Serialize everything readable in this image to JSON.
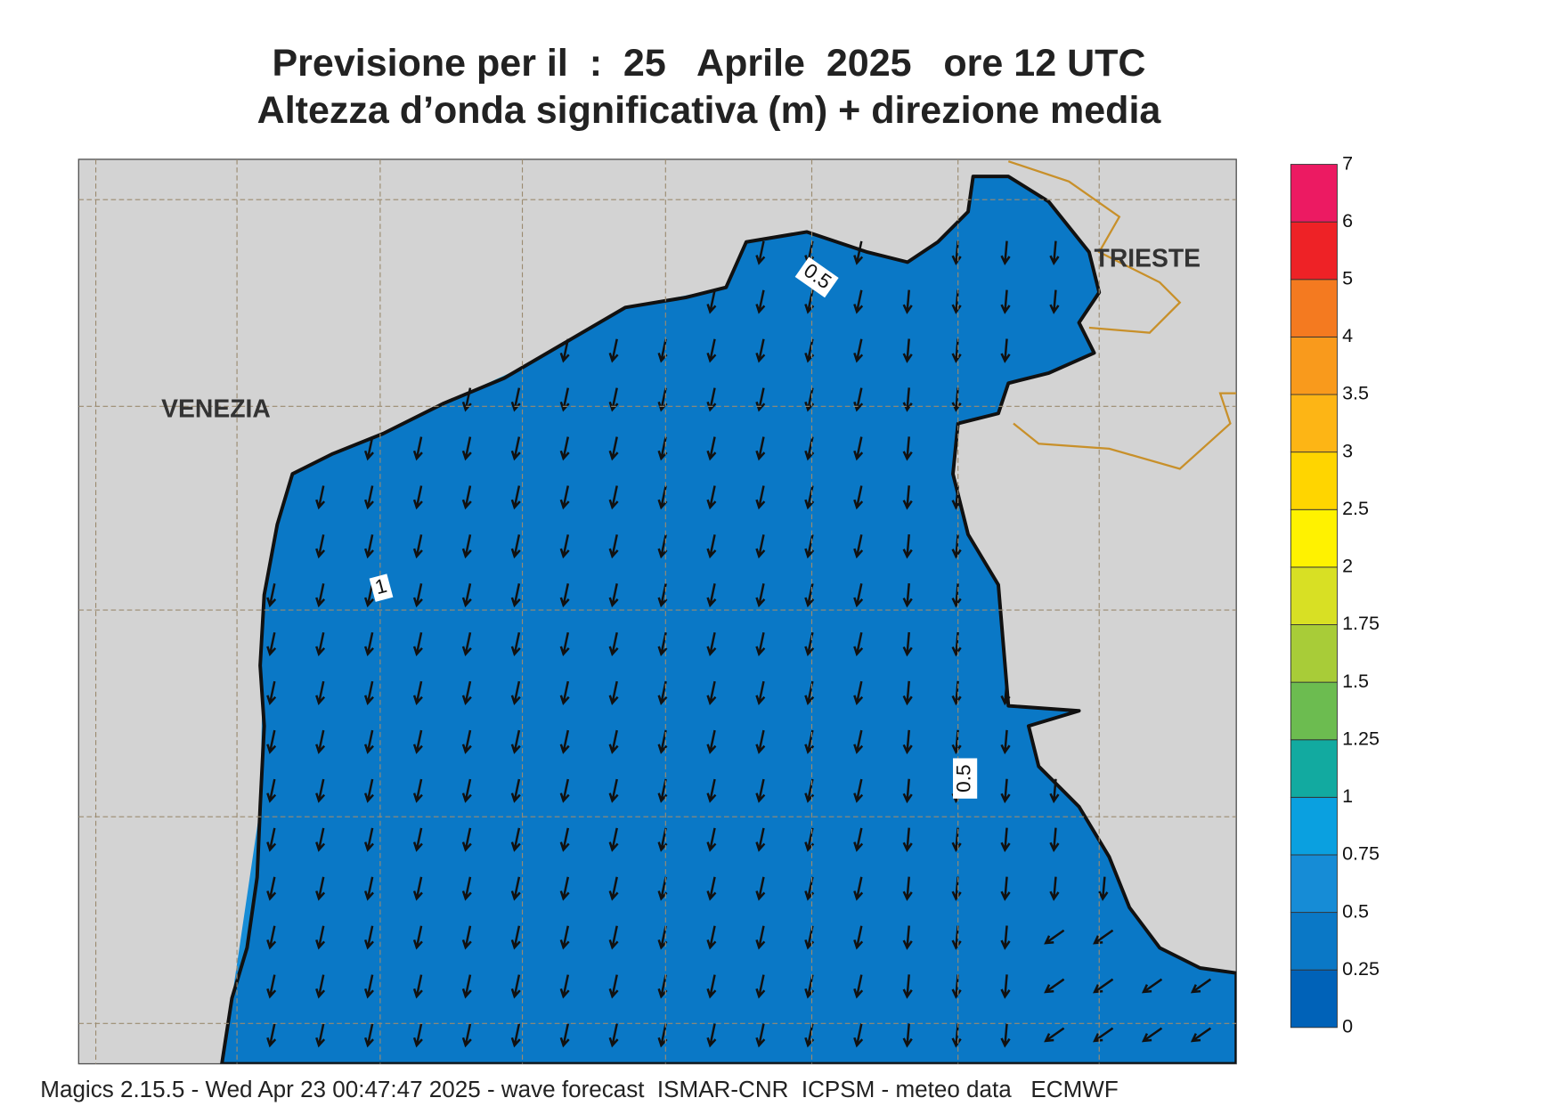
{
  "header": {
    "title": "Previsione per il  :  25   Aprile  2025   ore 12 UTC",
    "subtitle": "Altezza d’onda significativa (m) + direzione media"
  },
  "map": {
    "cities": [
      "VENEZIA",
      "TRIESTE"
    ],
    "contour_labels": [
      "0.5",
      "1",
      "0.5"
    ]
  },
  "legend": {
    "levels": [
      0,
      0.25,
      0.5,
      0.75,
      1,
      1.25,
      1.5,
      1.75,
      2,
      2.5,
      3,
      3.5,
      4,
      5,
      6,
      7
    ],
    "colors": [
      "#0062b8",
      "#0a78c6",
      "#168cd6",
      "#0aa0e0",
      "#12aaa0",
      "#6cbc50",
      "#a8cc38",
      "#d8e024",
      "#fff200",
      "#ffd500",
      "#fdb515",
      "#f99a1c",
      "#f47a20",
      "#ee2226",
      "#ec1a62"
    ]
  },
  "footer": "Magics 2.15.5 - Wed Apr 23 00:47:47 2025 - wave forecast  ISMAR-CNR  ICPSM - meteo data   ECMWF"
}
